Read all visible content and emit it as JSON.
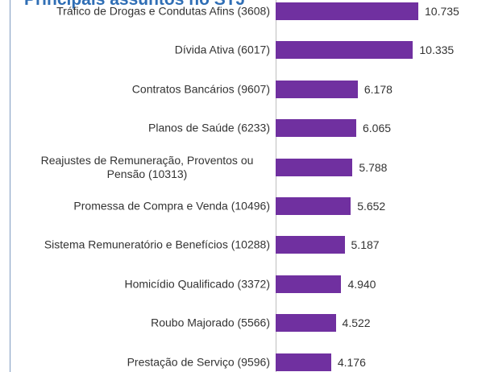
{
  "chart_data": {
    "type": "bar",
    "orientation": "horizontal",
    "title": "Principais assuntos no STJ",
    "categories": [
      "Tráfico de Drogas e Condutas Afins (3608)",
      "Dívida Ativa (6017)",
      "Contratos Bancários (9607)",
      "Planos de Saúde (6233)",
      "Reajustes de Remuneração, Proventos ou Pensão (10313)",
      "Promessa de Compra e Venda (10496)",
      "Sistema Remuneratório e Benefícios (10288)",
      "Homicídio Qualificado (3372)",
      "Roubo Majorado (5566)",
      "Prestação de Serviço (9596)"
    ],
    "values": [
      10735,
      10335,
      6178,
      6065,
      5788,
      5652,
      5187,
      4940,
      4522,
      4176
    ],
    "value_labels": [
      "10.735",
      "10.335",
      "6.178",
      "6.065",
      "5.788",
      "5.652",
      "5.187",
      "4.940",
      "4.522",
      "4.176"
    ],
    "color": "#7030a0"
  }
}
